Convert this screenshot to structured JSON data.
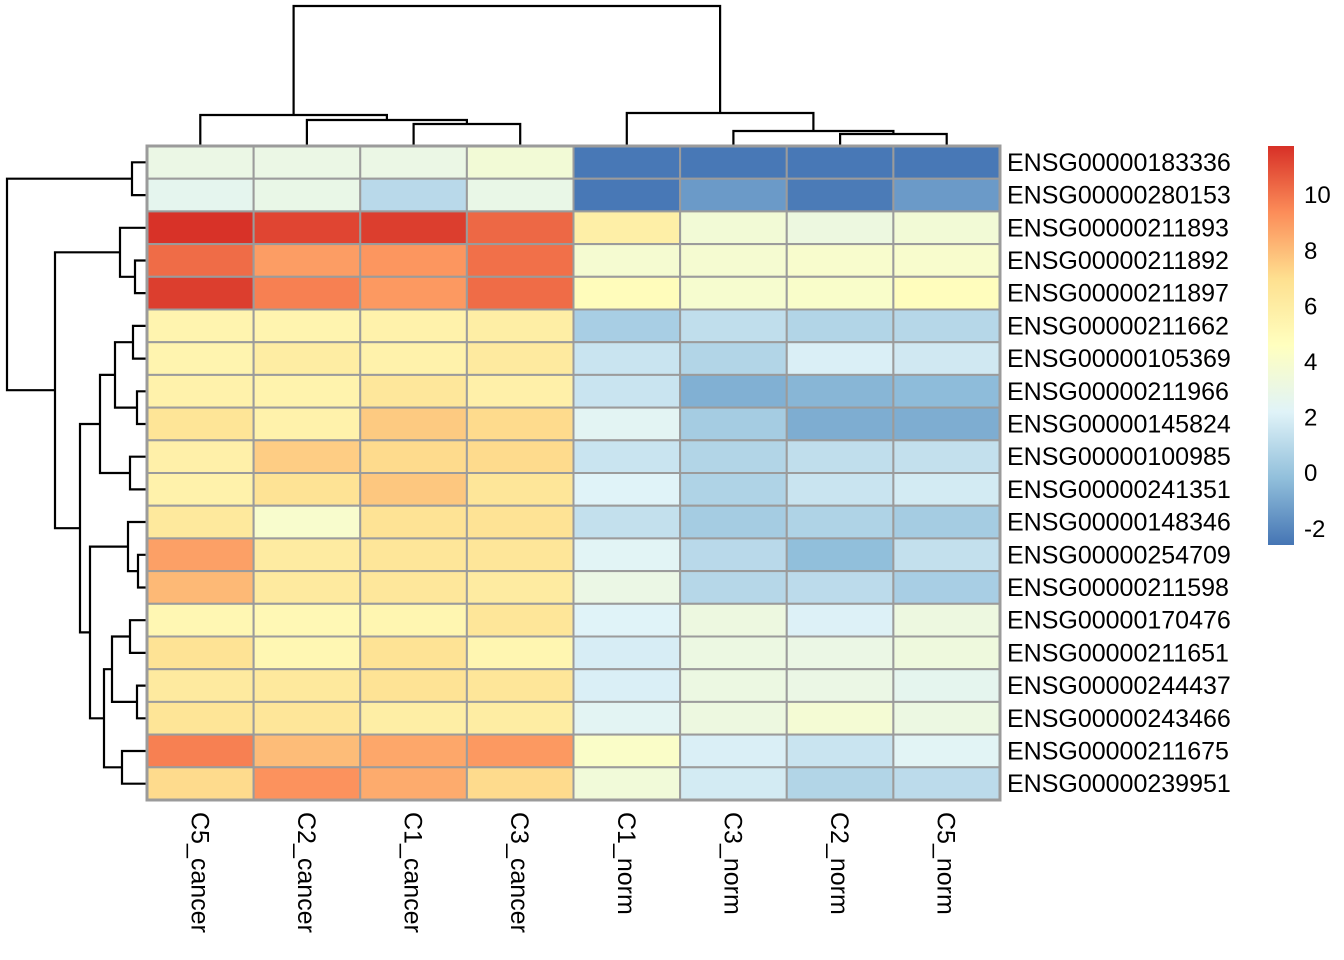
{
  "figure": {
    "kind": "clustered gene expression heatmap",
    "background": "#ffffff"
  },
  "chart_data": {
    "type": "heatmap",
    "title": "",
    "rows": [
      "ENSG00000183336",
      "ENSG00000280153",
      "ENSG00000211893",
      "ENSG00000211892",
      "ENSG00000211897",
      "ENSG00000211662",
      "ENSG00000105369",
      "ENSG00000211966",
      "ENSG00000145824",
      "ENSG00000100985",
      "ENSG00000241351",
      "ENSG00000148346",
      "ENSG00000254709",
      "ENSG00000211598",
      "ENSG00000170476",
      "ENSG00000211651",
      "ENSG00000244437",
      "ENSG00000243466",
      "ENSG00000211675",
      "ENSG00000239951"
    ],
    "columns": [
      "C5_cancer",
      "C2_cancer",
      "C1_cancer",
      "C3_cancer",
      "C1_norm",
      "C3_norm",
      "C2_norm",
      "C5_norm"
    ],
    "values": [
      [
        3.0,
        3.0,
        3.0,
        3.6,
        -2.5,
        -2.5,
        -2.5,
        -2.5
      ],
      [
        2.6,
        2.9,
        1.0,
        2.9,
        -2.5,
        -1.4,
        -2.4,
        -1.4
      ],
      [
        11.7,
        11.2,
        11.4,
        10.3,
        5.8,
        3.6,
        3.2,
        3.6
      ],
      [
        10.2,
        8.9,
        9.1,
        10.1,
        3.8,
        3.8,
        4.0,
        4.0
      ],
      [
        11.4,
        9.7,
        9.0,
        10.2,
        4.8,
        3.9,
        4.1,
        4.7
      ],
      [
        5.4,
        5.4,
        5.6,
        5.9,
        0.5,
        1.2,
        0.8,
        0.9
      ],
      [
        5.4,
        6.0,
        5.6,
        6.2,
        1.5,
        0.8,
        2.0,
        1.7
      ],
      [
        5.6,
        5.5,
        6.4,
        5.7,
        1.5,
        -0.7,
        -0.5,
        -0.3
      ],
      [
        6.6,
        5.6,
        7.6,
        7.1,
        2.4,
        0.4,
        -0.8,
        -0.8
      ],
      [
        5.7,
        7.5,
        7.1,
        7.1,
        1.5,
        0.8,
        1.2,
        1.3
      ],
      [
        5.6,
        6.7,
        7.7,
        6.5,
        2.2,
        0.7,
        1.5,
        1.8
      ],
      [
        6.3,
        4.0,
        6.7,
        6.7,
        1.3,
        0.4,
        0.7,
        0.4
      ],
      [
        8.8,
        6.1,
        6.5,
        6.5,
        2.3,
        1.0,
        -0.2,
        1.3
      ],
      [
        8.1,
        6.2,
        6.4,
        6.1,
        3.0,
        0.9,
        1.1,
        0.5
      ],
      [
        5.2,
        5.1,
        5.3,
        6.5,
        2.2,
        3.2,
        2.1,
        3.2
      ],
      [
        6.7,
        5.2,
        6.7,
        5.3,
        1.9,
        3.1,
        3.0,
        3.3
      ],
      [
        6.2,
        6.3,
        6.7,
        6.5,
        2.0,
        3.1,
        3.0,
        2.6
      ],
      [
        6.6,
        6.5,
        5.9,
        6.0,
        2.4,
        3.2,
        3.7,
        3.1
      ],
      [
        9.7,
        8.0,
        8.6,
        9.0,
        4.2,
        2.0,
        1.5,
        2.3
      ],
      [
        7.1,
        9.2,
        8.5,
        7.1,
        3.5,
        1.8,
        0.8,
        1.1
      ]
    ],
    "color_scale": {
      "palette": [
        "#4575b4",
        "#91bfdb",
        "#e0f3f8",
        "#ffffbf",
        "#fee090",
        "#fc8d59",
        "#d73027"
      ],
      "vmin": -2.6,
      "vmax": 11.75,
      "legend_tick_values": [
        10,
        8,
        6,
        4,
        2,
        0,
        -2
      ],
      "legend_tick_labels": [
        "10",
        "8",
        "6",
        "4",
        "2",
        "0",
        "-2"
      ]
    },
    "grid_color": "#9b9b9b",
    "dendrogram_color": "#000000",
    "legend_position": "right",
    "row_dendrogram": {
      "pos": 7,
      "children": [
        {
          "pos": 132,
          "children": [
            {
              "leaf": 0
            },
            {
              "leaf": 1
            }
          ]
        },
        {
          "pos": 55,
          "children": [
            {
              "pos": 120,
              "children": [
                {
                  "leaf": 2
                },
                {
                  "pos": 135,
                  "children": [
                    {
                      "leaf": 3
                    },
                    {
                      "leaf": 4
                    }
                  ]
                }
              ]
            },
            {
              "pos": 80,
              "children": [
                {
                  "pos": 100,
                  "children": [
                    {
                      "pos": 115,
                      "children": [
                        {
                          "pos": 133,
                          "children": [
                            {
                              "leaf": 5
                            },
                            {
                              "leaf": 6
                            }
                          ]
                        },
                        {
                          "pos": 137,
                          "children": [
                            {
                              "leaf": 7
                            },
                            {
                              "leaf": 8
                            }
                          ]
                        }
                      ]
                    },
                    {
                      "pos": 130,
                      "children": [
                        {
                          "leaf": 9
                        },
                        {
                          "leaf": 10
                        }
                      ]
                    }
                  ]
                },
                {
                  "pos": 90,
                  "children": [
                    {
                      "pos": 128,
                      "children": [
                        {
                          "leaf": 11
                        },
                        {
                          "pos": 138,
                          "children": [
                            {
                              "leaf": 12
                            },
                            {
                              "leaf": 13
                            }
                          ]
                        }
                      ]
                    },
                    {
                      "pos": 104,
                      "children": [
                        {
                          "pos": 112,
                          "children": [
                            {
                              "pos": 130,
                              "children": [
                                {
                                  "leaf": 14
                                },
                                {
                                  "leaf": 15
                                }
                              ]
                            },
                            {
                              "pos": 137,
                              "children": [
                                {
                                  "leaf": 16
                                },
                                {
                                  "leaf": 17
                                }
                              ]
                            }
                          ]
                        },
                        {
                          "pos": 122,
                          "children": [
                            {
                              "leaf": 18
                            },
                            {
                              "leaf": 19
                            }
                          ]
                        }
                      ]
                    }
                  ]
                }
              ]
            }
          ]
        }
      ]
    },
    "col_dendrogram": {
      "pos": 6,
      "children": [
        {
          "pos": 115,
          "children": [
            {
              "leaf": 0
            },
            {
              "pos": 120,
              "children": [
                {
                  "leaf": 1
                },
                {
                  "pos": 124,
                  "children": [
                    {
                      "leaf": 2
                    },
                    {
                      "leaf": 3
                    }
                  ]
                }
              ]
            }
          ]
        },
        {
          "pos": 113,
          "children": [
            {
              "leaf": 4
            },
            {
              "pos": 131,
              "children": [
                {
                  "leaf": 5
                },
                {
                  "pos": 134,
                  "children": [
                    {
                      "leaf": 6
                    },
                    {
                      "leaf": 7
                    }
                  ]
                }
              ]
            }
          ]
        }
      ]
    }
  }
}
